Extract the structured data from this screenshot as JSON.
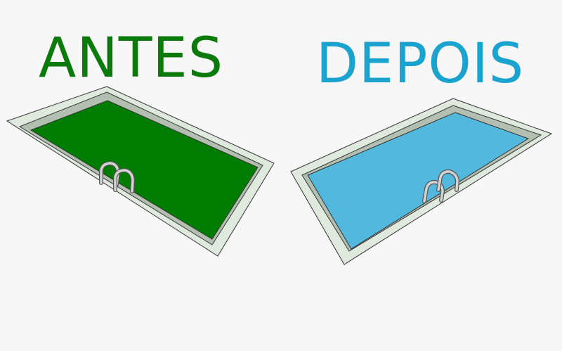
{
  "labels": {
    "before": "ANTES",
    "after": "DEPOIS"
  },
  "colors": {
    "background": "#f7f7f7",
    "before_text": "#0a7a0a",
    "after_text": "#1aa3cf",
    "before_water": "#007d00",
    "after_water": "#52b8de",
    "pool_deck": "#dfe9dd",
    "pool_wall": "#b3c0b1",
    "outline": "#333333",
    "ladder": "#c8c8c8"
  },
  "pools": [
    {
      "name": "before-pool",
      "water": "dirty-green",
      "ladder_icon": "ladder-icon"
    },
    {
      "name": "after-pool",
      "water": "clean-blue",
      "ladder_icon": "ladder-icon"
    }
  ]
}
